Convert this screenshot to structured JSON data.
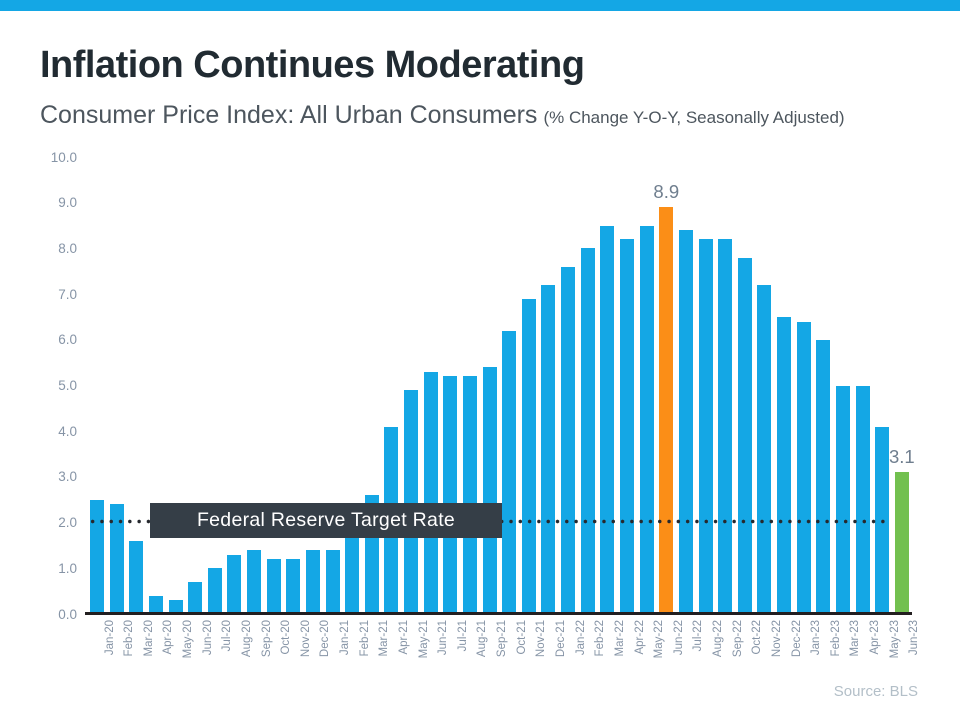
{
  "header": {
    "title": "Inflation Continues Moderating",
    "subtitle": "Consumer Price Index: All Urban Consumers",
    "subtitle_note": "(% Change Y-O-Y, Seasonally Adjusted)"
  },
  "footer": {
    "source": "Source: BLS"
  },
  "colors": {
    "top_strip": "#14a7e5",
    "bar_blue": "#14a7e5",
    "bar_orange": "#fb8e17",
    "bar_green": "#72c04f",
    "target_box_bg": "#353e47",
    "target_box_text": "#ffffff",
    "dotted_line": "#26292e",
    "axis_line": "#231f20",
    "tick_label": "#8694a6",
    "value_label": "#6f7e8e",
    "title_text": "#212b32",
    "subtitle_text": "#4d565e",
    "source_text": "#b3bfc8"
  },
  "chart_data": {
    "type": "bar",
    "title": "Consumer Price Index: All Urban Consumers (% Change Y-O-Y, Seasonally Adjusted)",
    "xlabel": "",
    "ylabel": "",
    "ylim": [
      0,
      10
    ],
    "ytick_labels": [
      "0.0",
      "1.0",
      "2.0",
      "3.0",
      "4.0",
      "5.0",
      "6.0",
      "7.0",
      "8.0",
      "9.0",
      "10.0"
    ],
    "grid": false,
    "legend": "none",
    "categories": [
      "Jan-20",
      "Feb-20",
      "Mar-20",
      "Apr-20",
      "May-20",
      "Jun-20",
      "Jul-20",
      "Aug-20",
      "Sep-20",
      "Oct-20",
      "Nov-20",
      "Dec-20",
      "Jan-21",
      "Feb-21",
      "Mar-21",
      "Apr-21",
      "May-21",
      "Jun-21",
      "Jul-21",
      "Aug-21",
      "Sep-21",
      "Oct-21",
      "Nov-21",
      "Dec-21",
      "Jan-22",
      "Feb-22",
      "Mar-22",
      "Apr-22",
      "May-22",
      "Jun-22",
      "Jul-22",
      "Aug-22",
      "Sep-22",
      "Oct-22",
      "Nov-22",
      "Dec-22",
      "Jan-23",
      "Feb-23",
      "Mar-23",
      "Apr-23",
      "May-23",
      "Jun-23"
    ],
    "values": [
      2.5,
      2.4,
      1.6,
      0.4,
      0.3,
      0.7,
      1.0,
      1.3,
      1.4,
      1.2,
      1.2,
      1.4,
      1.4,
      1.7,
      2.6,
      4.1,
      4.9,
      5.3,
      5.2,
      5.2,
      5.4,
      6.2,
      6.9,
      7.2,
      7.6,
      8.0,
      8.5,
      8.2,
      8.5,
      8.9,
      8.4,
      8.2,
      8.2,
      7.8,
      7.2,
      6.5,
      6.4,
      6.0,
      5.0,
      5.0,
      4.1,
      3.1
    ],
    "bar_color_default_key": "bar_blue",
    "highlighted_bars": [
      {
        "category": "Jun-22",
        "color_key": "bar_orange"
      },
      {
        "category": "Jun-23",
        "color_key": "bar_green"
      }
    ],
    "annotations": [
      {
        "category": "Jun-22",
        "text": "8.9"
      },
      {
        "category": "Jun-23",
        "text": "3.1"
      }
    ],
    "reference_line": {
      "value": 2.0,
      "label": "Federal Reserve Target Rate",
      "style": "dotted"
    }
  }
}
